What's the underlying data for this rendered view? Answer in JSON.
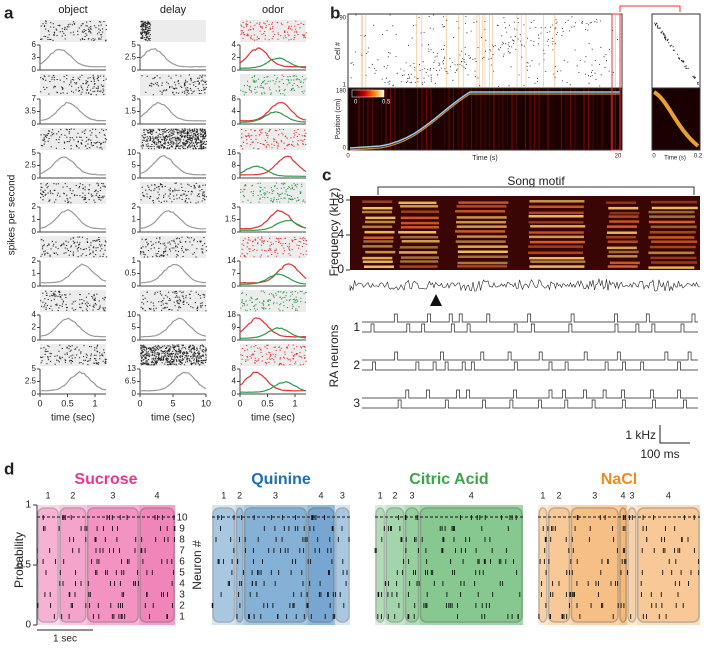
{
  "panel_a": {
    "label": "a",
    "ylabel": "spikes per second",
    "columns": [
      {
        "title": "object",
        "row_ticks": [
          [
            6,
            3,
            0
          ],
          [
            7,
            3.5,
            0
          ],
          [
            5,
            2.5,
            0
          ],
          [
            2,
            1,
            0
          ],
          [
            2,
            1,
            0
          ],
          [
            4,
            2,
            0
          ],
          [
            5,
            2.5,
            0
          ]
        ],
        "xlabel": "time (sec)",
        "xticks": [
          0,
          0.5,
          1
        ]
      },
      {
        "title": "delay",
        "row_ticks": [
          [
            5,
            2.5,
            0
          ],
          [
            3,
            1.5,
            0
          ],
          [
            10,
            5,
            0
          ],
          [
            2,
            1,
            0
          ],
          [
            1,
            0.5,
            0
          ],
          [
            10,
            5,
            0
          ],
          [
            13,
            6.5,
            0
          ]
        ],
        "xlabel": "time (sec)",
        "xticks": [
          0,
          5,
          10
        ]
      },
      {
        "title": "odor",
        "row_ticks": [
          [
            4,
            2,
            0
          ],
          [
            8,
            4,
            0
          ],
          [
            16,
            8,
            0
          ],
          [
            3,
            1.5,
            0
          ],
          [
            14,
            7,
            0
          ],
          [
            18,
            9,
            0
          ],
          [
            8,
            4,
            0
          ]
        ],
        "xlabel": "time (sec)",
        "xticks": [
          0,
          0.5,
          1
        ]
      }
    ]
  },
  "panel_b": {
    "label": "b",
    "cell_label": "Cell #",
    "cell_ticks": [
      90,
      1
    ],
    "position_label": "Position (cm)",
    "position_ticks": [
      180,
      0
    ],
    "colorbar_ticks": [
      0,
      0.5
    ],
    "xlabel": "Time (s)",
    "xticks": [
      0,
      20
    ],
    "inset_xlabel": "Time (s)",
    "inset_xticks": [
      0,
      0.2
    ]
  },
  "panel_c": {
    "label": "c",
    "motif": "Song motif",
    "ylabel": "Frequency (kHz)",
    "yticks": [
      8,
      4,
      0
    ],
    "neurons_label": "RA neurons",
    "neurons": [
      "1",
      "2",
      "3"
    ],
    "scale_y": "1 kHz",
    "scale_x": "100 ms"
  },
  "panel_d": {
    "label": "d",
    "ylabel": "Probability",
    "yticks": [
      1,
      0.5,
      0
    ],
    "neuron_label": "Neuron #",
    "neuron_ticks": [
      10,
      9,
      8,
      7,
      6,
      5,
      4,
      3,
      2,
      1
    ],
    "scale": "1 sec",
    "tastes": [
      {
        "name": "Sucrose",
        "color": "#e8388f",
        "states": [
          "1",
          "2",
          "3",
          "4"
        ]
      },
      {
        "name": "Quinine",
        "color": "#1f6fb4",
        "states": [
          "1",
          "2",
          "3",
          "4",
          "3"
        ]
      },
      {
        "name": "Citric Acid",
        "color": "#3aa64a",
        "states": [
          "1",
          "2",
          "3",
          "4"
        ]
      },
      {
        "name": "NaCl",
        "color": "#f08a1c",
        "states": [
          "1",
          "2",
          "3",
          "4",
          "3",
          "4"
        ]
      }
    ]
  }
}
